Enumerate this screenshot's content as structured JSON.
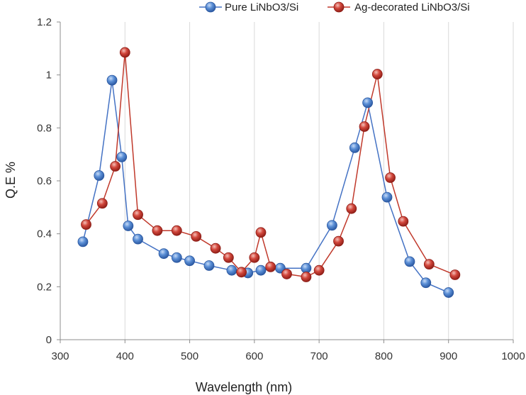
{
  "chart_data": {
    "type": "line",
    "xlabel": "Wavelength (nm)",
    "ylabel": "Q.E %",
    "xlim": [
      300,
      1000
    ],
    "ylim": [
      0,
      1.2
    ],
    "x_ticks": [
      300,
      400,
      500,
      600,
      700,
      800,
      900,
      1000
    ],
    "y_ticks": [
      0,
      0.2,
      0.4,
      0.6,
      0.8,
      1,
      1.2
    ],
    "x_tick_labels": [
      "300",
      "400",
      "500",
      "600",
      "700",
      "800",
      "900",
      "1000"
    ],
    "y_tick_labels": [
      "0",
      "0.2",
      "0.4",
      "0.6",
      "0.8",
      "1",
      "1.2"
    ],
    "grid": "vertical",
    "legend_position": "top-right",
    "series": [
      {
        "name": "Pure LiNbO3/Si",
        "color": "#4472C4",
        "points": [
          [
            335,
            0.37
          ],
          [
            360,
            0.62
          ],
          [
            380,
            0.98
          ],
          [
            395,
            0.69
          ],
          [
            405,
            0.43
          ],
          [
            420,
            0.38
          ],
          [
            460,
            0.325
          ],
          [
            480,
            0.31
          ],
          [
            500,
            0.298
          ],
          [
            530,
            0.28
          ],
          [
            565,
            0.262
          ],
          [
            590,
            0.252
          ],
          [
            610,
            0.262
          ],
          [
            640,
            0.27
          ],
          [
            680,
            0.27
          ],
          [
            720,
            0.432
          ],
          [
            755,
            0.725
          ],
          [
            775,
            0.895
          ],
          [
            805,
            0.538
          ],
          [
            840,
            0.295
          ],
          [
            865,
            0.215
          ],
          [
            900,
            0.178
          ]
        ]
      },
      {
        "name": "Ag-decorated LiNbO3/Si",
        "color": "#C0392B",
        "points": [
          [
            340,
            0.435
          ],
          [
            365,
            0.515
          ],
          [
            385,
            0.655
          ],
          [
            400,
            1.085
          ],
          [
            420,
            0.472
          ],
          [
            450,
            0.412
          ],
          [
            480,
            0.412
          ],
          [
            510,
            0.39
          ],
          [
            540,
            0.345
          ],
          [
            560,
            0.31
          ],
          [
            580,
            0.255
          ],
          [
            600,
            0.31
          ],
          [
            610,
            0.405
          ],
          [
            625,
            0.275
          ],
          [
            650,
            0.248
          ],
          [
            680,
            0.237
          ],
          [
            700,
            0.262
          ],
          [
            730,
            0.372
          ],
          [
            750,
            0.495
          ],
          [
            770,
            0.805
          ],
          [
            790,
            1.003
          ],
          [
            810,
            0.612
          ],
          [
            830,
            0.447
          ],
          [
            870,
            0.285
          ],
          [
            910,
            0.245
          ]
        ]
      }
    ]
  }
}
